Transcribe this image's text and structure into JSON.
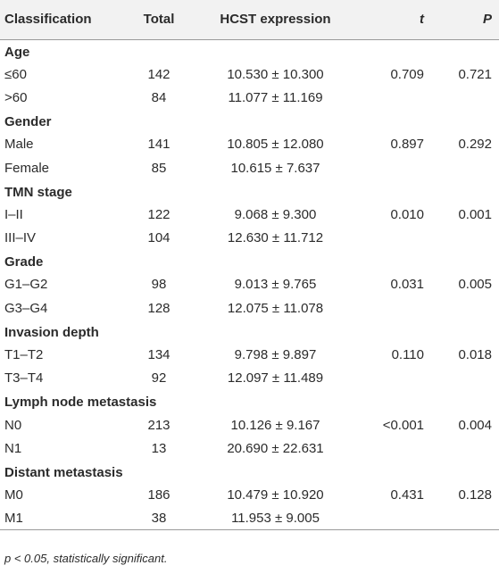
{
  "table": {
    "headers": {
      "classification": "Classification",
      "total": "Total",
      "expression": "HCST expression",
      "t": "t",
      "p": "P"
    },
    "groups": [
      {
        "name": "Age",
        "rows": [
          {
            "label": "≤60",
            "total": "142",
            "expr": "10.530 ± 10.300",
            "t": "0.709",
            "p": "0.721"
          },
          {
            "label": ">60",
            "total": "84",
            "expr": "11.077 ± 11.169",
            "t": "",
            "p": ""
          }
        ]
      },
      {
        "name": "Gender",
        "rows": [
          {
            "label": "Male",
            "total": "141",
            "expr": "10.805 ± 12.080",
            "t": "0.897",
            "p": "0.292"
          },
          {
            "label": "Female",
            "total": "85",
            "expr": "10.615 ± 7.637",
            "t": "",
            "p": ""
          }
        ]
      },
      {
        "name": "TMN stage",
        "rows": [
          {
            "label": "I–II",
            "total": "122",
            "expr": "9.068 ± 9.300",
            "t": "0.010",
            "p": "0.001"
          },
          {
            "label": "III–IV",
            "total": "104",
            "expr": "12.630 ± 11.712",
            "t": "",
            "p": ""
          }
        ]
      },
      {
        "name": "Grade",
        "rows": [
          {
            "label": "G1–G2",
            "total": "98",
            "expr": "9.013 ± 9.765",
            "t": "0.031",
            "p": "0.005"
          },
          {
            "label": "G3–G4",
            "total": "128",
            "expr": "12.075 ± 11.078",
            "t": "",
            "p": ""
          }
        ]
      },
      {
        "name": "Invasion depth",
        "rows": [
          {
            "label": "T1–T2",
            "total": "134",
            "expr": "9.798 ± 9.897",
            "t": "0.110",
            "p": "0.018"
          },
          {
            "label": "T3–T4",
            "total": "92",
            "expr": "12.097 ± 11.489",
            "t": "",
            "p": ""
          }
        ]
      },
      {
        "name": "Lymph node metastasis",
        "rows": [
          {
            "label": "N0",
            "total": "213",
            "expr": "10.126 ± 9.167",
            "t": "<0.001",
            "p": "0.004"
          },
          {
            "label": "N1",
            "total": "13",
            "expr": "20.690 ± 22.631",
            "t": "",
            "p": ""
          }
        ]
      },
      {
        "name": "Distant metastasis",
        "rows": [
          {
            "label": "M0",
            "total": "186",
            "expr": "10.479 ± 10.920",
            "t": "0.431",
            "p": "0.128"
          },
          {
            "label": "M1",
            "total": "38",
            "expr": "11.953 ± 9.005",
            "t": "",
            "p": ""
          }
        ]
      }
    ]
  },
  "footnote": "p < 0.05, statistically significant."
}
